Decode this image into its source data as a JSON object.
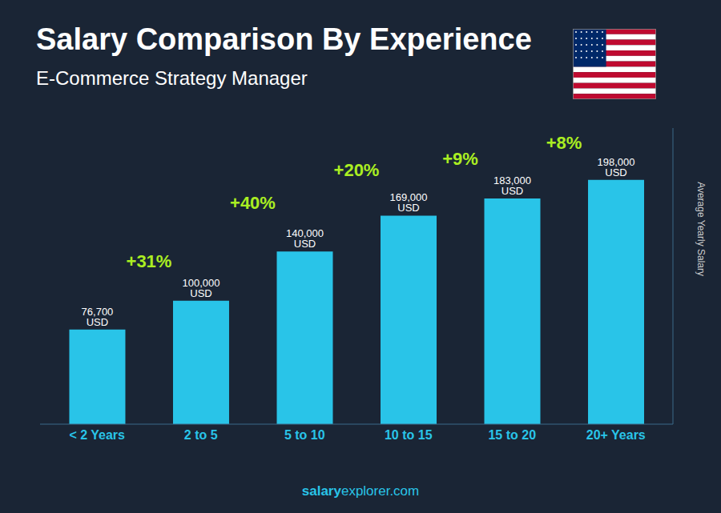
{
  "chart_data": {
    "type": "bar",
    "title": "Salary Comparison By Experience",
    "subtitle": "E-Commerce Strategy Manager",
    "ylabel": "Average Yearly Salary",
    "categories": [
      "< 2 Years",
      "2 to 5",
      "5 to 10",
      "10 to 15",
      "15 to 20",
      "20+ Years"
    ],
    "values": [
      76700,
      100000,
      140000,
      169000,
      183000,
      198000
    ],
    "value_labels": [
      "76,700 USD",
      "100,000 USD",
      "140,000 USD",
      "169,000 USD",
      "183,000 USD",
      "198,000 USD"
    ],
    "data_labels": true,
    "annotations": [
      "+31%",
      "+40%",
      "+20%",
      "+9%",
      "+8%"
    ],
    "watermark": [
      "salary",
      "explorer.com"
    ],
    "color": "#29c4e8",
    "ylim": [
      0,
      240000
    ],
    "grid": false,
    "tick_labels": "x"
  }
}
